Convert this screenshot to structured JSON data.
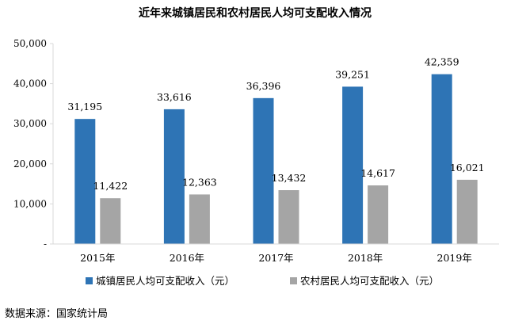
{
  "chart_data": {
    "type": "bar",
    "title": "近年来城镇居民和农村居民人均可支配收入情况",
    "categories": [
      "2015年",
      "2016年",
      "2017年",
      "2018年",
      "2019年"
    ],
    "series": [
      {
        "name": "城镇居民人均可支配收入（元）",
        "color": "#2e74b5",
        "values": [
          31195,
          33616,
          36396,
          39251,
          42359
        ],
        "labels": [
          "31,195",
          "33,616",
          "36,396",
          "39,251",
          "42,359"
        ]
      },
      {
        "name": "农村居民人均可支配收入（元）",
        "color": "#a5a5a5",
        "values": [
          11422,
          12363,
          13432,
          14617,
          16021
        ],
        "labels": [
          "11,422",
          "12,363",
          "13,432",
          "14,617",
          "16,021"
        ]
      }
    ],
    "ylim": [
      0,
      50000
    ],
    "yticks": [
      0,
      10000,
      20000,
      30000,
      40000,
      50000
    ],
    "ytick_labels": [
      "-",
      "10,000",
      "20,000",
      "30,000",
      "40,000",
      "50,000"
    ],
    "xlabel": "",
    "ylabel": "",
    "grid": false,
    "legend_position": "bottom"
  },
  "source_note": "数据来源：国家统计局"
}
